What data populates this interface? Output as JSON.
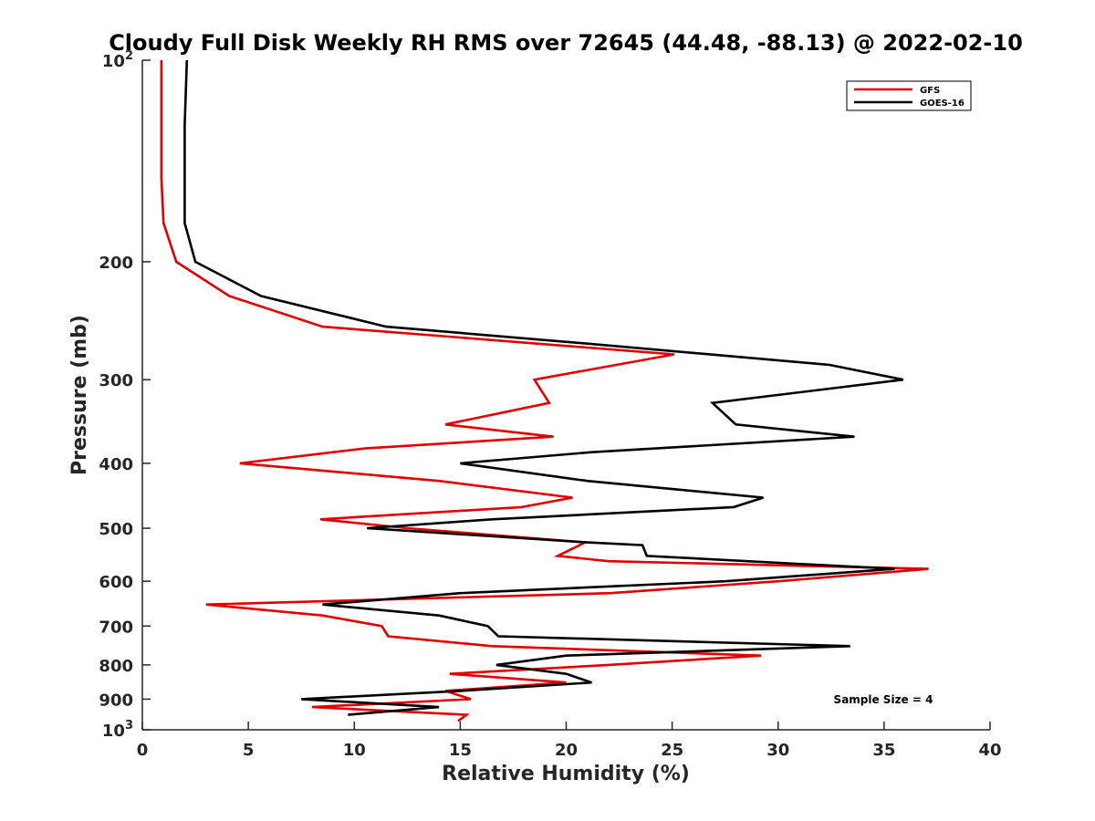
{
  "chart_data": {
    "type": "line",
    "title": "Cloudy Full Disk Weekly RH RMS over 72645 (44.48, -88.13) @ 2022-02-10",
    "xlabel": "Relative Humidity (%)",
    "ylabel": "Pressure (mb)",
    "xlim": [
      0,
      40
    ],
    "ylim": [
      100,
      1000
    ],
    "y_scale": "log",
    "y_reversed": true,
    "x_ticks": [
      0,
      5,
      10,
      15,
      20,
      25,
      30,
      35,
      40
    ],
    "y_ticks": [
      {
        "value": 100,
        "base": "10",
        "exp": "2"
      },
      {
        "value": 200,
        "label": "200"
      },
      {
        "value": 300,
        "label": "300"
      },
      {
        "value": 400,
        "label": "400"
      },
      {
        "value": 500,
        "label": "500"
      },
      {
        "value": 600,
        "label": "600"
      },
      {
        "value": 700,
        "label": "700"
      },
      {
        "value": 800,
        "label": "800"
      },
      {
        "value": 900,
        "label": "900"
      },
      {
        "value": 1000,
        "base": "10",
        "exp": "3"
      }
    ],
    "grid": false,
    "legend_position": "top-right",
    "series": [
      {
        "name": "GFS",
        "color": "#e00000",
        "points": [
          [
            0.9,
            100
          ],
          [
            0.9,
            125
          ],
          [
            0.9,
            150
          ],
          [
            1.0,
            175
          ],
          [
            1.6,
            200
          ],
          [
            4.1,
            225
          ],
          [
            8.5,
            250
          ],
          [
            25.1,
            275
          ],
          [
            18.5,
            300
          ],
          [
            19.2,
            325
          ],
          [
            14.3,
            350
          ],
          [
            19.4,
            365
          ],
          [
            10.5,
            380
          ],
          [
            4.6,
            400
          ],
          [
            14.0,
            425
          ],
          [
            20.3,
            450
          ],
          [
            17.9,
            465
          ],
          [
            8.4,
            485
          ],
          [
            12.5,
            500
          ],
          [
            20.9,
            525
          ],
          [
            19.6,
            550
          ],
          [
            22.0,
            560
          ],
          [
            37.1,
            575
          ],
          [
            30.0,
            600
          ],
          [
            22.1,
            625
          ],
          [
            3.0,
            650
          ],
          [
            8.5,
            675
          ],
          [
            11.3,
            700
          ],
          [
            11.6,
            725
          ],
          [
            16.5,
            750
          ],
          [
            29.2,
            775
          ],
          [
            22.0,
            800
          ],
          [
            14.5,
            825
          ],
          [
            20.0,
            850
          ],
          [
            14.3,
            875
          ],
          [
            15.5,
            900
          ],
          [
            8.0,
            925
          ],
          [
            15.3,
            950
          ],
          [
            14.9,
            970
          ]
        ]
      },
      {
        "name": "GOES-16",
        "color": "#000000",
        "points": [
          [
            2.1,
            100
          ],
          [
            2.0,
            125
          ],
          [
            2.0,
            150
          ],
          [
            2.0,
            175
          ],
          [
            2.5,
            200
          ],
          [
            5.6,
            225
          ],
          [
            11.5,
            250
          ],
          [
            21.0,
            265
          ],
          [
            32.4,
            285
          ],
          [
            35.9,
            300
          ],
          [
            26.9,
            325
          ],
          [
            28.0,
            350
          ],
          [
            33.6,
            365
          ],
          [
            21.2,
            385
          ],
          [
            15.0,
            400
          ],
          [
            21.0,
            425
          ],
          [
            29.3,
            450
          ],
          [
            27.9,
            465
          ],
          [
            16.5,
            485
          ],
          [
            10.6,
            500
          ],
          [
            21.0,
            525
          ],
          [
            23.6,
            530
          ],
          [
            23.8,
            550
          ],
          [
            35.5,
            575
          ],
          [
            27.5,
            600
          ],
          [
            15.0,
            625
          ],
          [
            8.5,
            650
          ],
          [
            14.0,
            675
          ],
          [
            16.3,
            700
          ],
          [
            16.8,
            725
          ],
          [
            33.4,
            750
          ],
          [
            20.0,
            775
          ],
          [
            16.7,
            800
          ],
          [
            20.0,
            825
          ],
          [
            21.2,
            850
          ],
          [
            15.0,
            875
          ],
          [
            7.5,
            900
          ],
          [
            14.0,
            925
          ],
          [
            9.7,
            950
          ]
        ]
      }
    ],
    "annotations": [
      {
        "text": "Sample Size = 4"
      }
    ]
  }
}
